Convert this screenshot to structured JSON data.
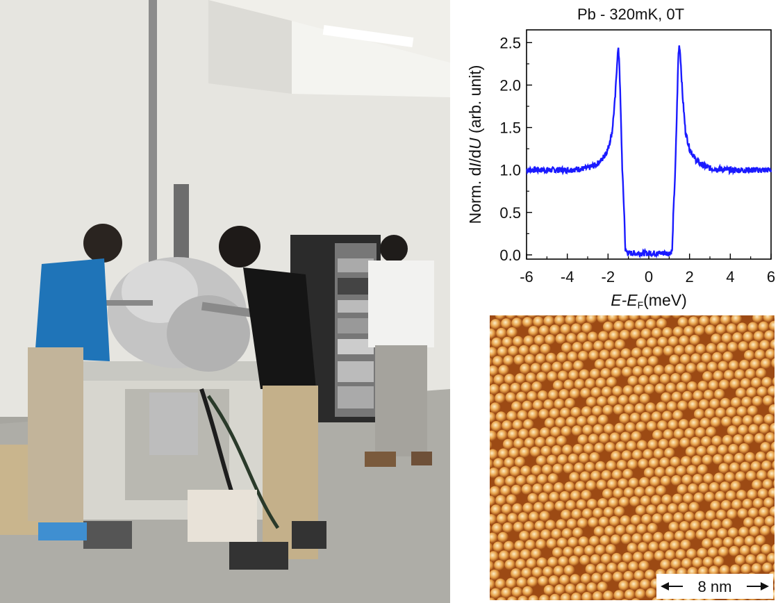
{
  "chart_data": {
    "type": "line",
    "title": "Pb - 320mK, 0T",
    "xlabel": {
      "main": "E-E",
      "sub": "F",
      "unit": "(meV)"
    },
    "ylabel": {
      "prefix": "Norm. d",
      "i": "I",
      "mid": "/d",
      "u": "U",
      "suffix": " (arb. unit)"
    },
    "xlim": [
      -6,
      6
    ],
    "ylim": [
      -0.05,
      2.65
    ],
    "xticks": [
      -6,
      -4,
      -2,
      0,
      2,
      4,
      6
    ],
    "yticks": [
      0.0,
      0.5,
      1.0,
      1.5,
      2.0,
      2.5
    ],
    "grid": false,
    "series": [
      {
        "color": "#1a1aff",
        "x": [
          -6,
          -5,
          -4,
          -3,
          -2.6,
          -2.3,
          -2.0,
          -1.8,
          -1.65,
          -1.55,
          -1.5,
          -1.45,
          -1.38,
          -1.3,
          -1.2,
          -1.15,
          -1.0,
          0,
          1.0,
          1.15,
          1.2,
          1.3,
          1.38,
          1.45,
          1.5,
          1.55,
          1.65,
          1.8,
          2.0,
          2.3,
          2.6,
          3,
          4,
          5,
          6
        ],
        "y": [
          1.0,
          1.0,
          1.0,
          1.02,
          1.06,
          1.12,
          1.25,
          1.45,
          1.85,
          2.3,
          2.43,
          2.3,
          1.7,
          1.0,
          0.45,
          0.05,
          0.02,
          0.02,
          0.02,
          0.05,
          0.45,
          1.0,
          1.7,
          2.35,
          2.48,
          2.35,
          1.9,
          1.45,
          1.25,
          1.12,
          1.06,
          1.02,
          1.0,
          1.0,
          1.0
        ]
      }
    ]
  },
  "stm_image": {
    "scalebar_label": "8 nm",
    "colors": {
      "background": "#9c4a14",
      "atom_mid": "#e8a44d",
      "atom_highlight": "#fdeec7"
    }
  },
  "photo": {
    "colors": {
      "wall": "#e9e8e3",
      "floor": "#a9a8a2",
      "foil": "#c9c9c9",
      "rack": "#2a2a2a"
    }
  }
}
